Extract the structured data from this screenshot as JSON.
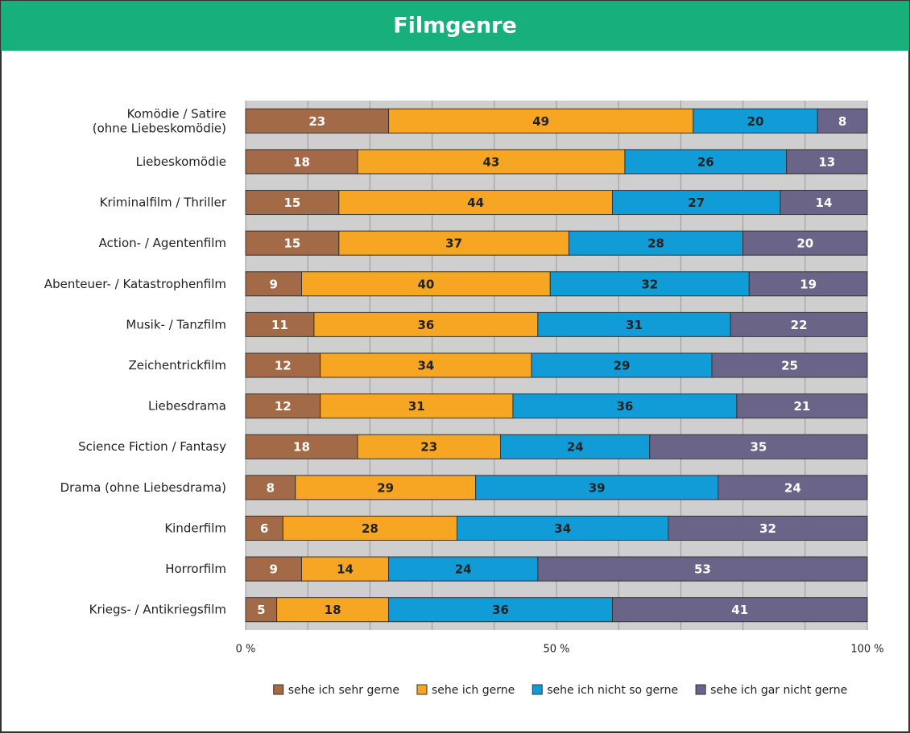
{
  "chart_data": {
    "type": "stacked_barh",
    "title": "Filmgenre",
    "categories": [
      "Komödie / Satire\n(ohne Liebeskomödie)",
      "Liebeskomödie",
      "Kriminalfilm / Thriller",
      "Action- / Agentenfilm",
      "Abenteuer- / Katastrophenfilm",
      "Musik- / Tanzfilm",
      "Zeichentrickfilm",
      "Liebesdrama",
      "Science Fiction / Fantasy",
      "Drama (ohne Liebesdrama)",
      "Kinderfilm",
      "Horrorfilm",
      "Kriegs- / Antikriegsfilm"
    ],
    "series": [
      {
        "name": "sehe ich sehr gerne",
        "color": "#a36a48",
        "label_color": "#ffffff",
        "values": [
          23,
          18,
          15,
          15,
          9,
          11,
          12,
          12,
          18,
          8,
          6,
          9,
          5
        ]
      },
      {
        "name": "sehe ich gerne",
        "color": "#f6a623",
        "label_color": "#222222",
        "values": [
          49,
          43,
          44,
          37,
          40,
          36,
          34,
          31,
          23,
          29,
          28,
          14,
          18
        ]
      },
      {
        "name": "sehe ich nicht so gerne",
        "color": "#119bd7",
        "label_color": "#222222",
        "values": [
          20,
          26,
          27,
          28,
          32,
          31,
          29,
          36,
          24,
          39,
          34,
          24,
          36
        ]
      },
      {
        "name": "sehe ich gar nicht gerne",
        "color": "#6b6489",
        "label_color": "#ffffff",
        "values": [
          8,
          13,
          14,
          20,
          19,
          22,
          25,
          21,
          35,
          24,
          32,
          53,
          41
        ]
      }
    ],
    "xlim": [
      0,
      100
    ],
    "xticks": [
      {
        "value": 0,
        "label": "0 %"
      },
      {
        "value": 50,
        "label": "50 %"
      },
      {
        "value": 100,
        "label": "100 %"
      }
    ],
    "minor_xticks": [
      10,
      20,
      30,
      40,
      60,
      70,
      80,
      90
    ],
    "grid": true,
    "legend": "bottom"
  }
}
